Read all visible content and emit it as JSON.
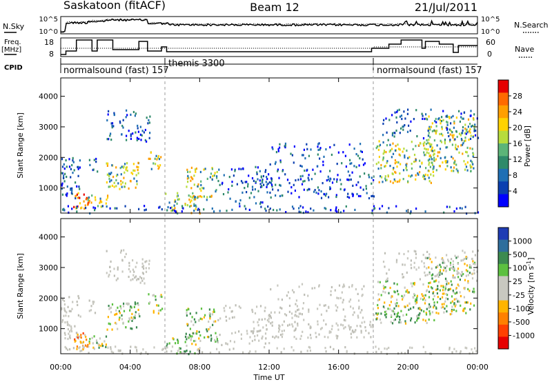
{
  "header": {
    "station": "Saskatoon (fitACF)",
    "beam": "Beam 12",
    "date": "21/Jul/2011"
  },
  "chart_data": [
    {
      "type": "line",
      "panel": "noise",
      "ylabel_left": "N.Sky",
      "ylabel_right": "N.Search",
      "left_ticks": [
        "10^5",
        "10^0"
      ],
      "right_ticks": [
        "10^5",
        "10^0"
      ],
      "series": [
        {
          "name": "N.Sky",
          "style": "solid"
        },
        {
          "name": "N.Search",
          "style": "dotted"
        }
      ]
    },
    {
      "type": "line",
      "panel": "frequency",
      "ylabel_left_1": "Freq.",
      "ylabel_left_2": "[MHz]",
      "ylabel_right": "Nave",
      "left_ticks": [
        "18",
        "8"
      ],
      "right_ticks": [
        "60",
        "0"
      ],
      "series": [
        {
          "name": "Freq.",
          "style": "solid"
        },
        {
          "name": "Nave",
          "style": "dotted"
        }
      ]
    },
    {
      "type": "table",
      "panel": "cpid",
      "label": "CPID",
      "segments": [
        {
          "start_h": 0,
          "end_h": 6,
          "text": "normalsound (fast) 157"
        },
        {
          "start_h": 6,
          "end_h": 18,
          "text": "themis 3300"
        },
        {
          "start_h": 18,
          "end_h": 24,
          "text": "normalsound (fast) 157"
        }
      ]
    },
    {
      "type": "heatmap",
      "panel": "power",
      "ylabel": "Slant Range [km]",
      "ylim": [
        180,
        4600
      ],
      "yticks": [
        1000,
        2000,
        3000,
        4000
      ],
      "colorbar_label": "Power [dB]",
      "colorbar_ticks": [
        "28",
        "24",
        "20",
        "16",
        "12",
        "8",
        "4"
      ],
      "colorbar_colors": [
        "#e60000",
        "#ff6a00",
        "#ff9f00",
        "#ffd200",
        "#b7dc3c",
        "#5cb478",
        "#2f8a6a",
        "#1f6fb4",
        "#0b3fb0",
        "#0000ff"
      ]
    },
    {
      "type": "heatmap",
      "panel": "velocity",
      "ylabel": "Slant Range [km]",
      "ylim": [
        180,
        4600
      ],
      "yticks": [
        1000,
        2000,
        3000,
        4000
      ],
      "colorbar_label": "Velocity [m s",
      "colorbar_label_sup": "-1",
      "colorbar_label_end": "]",
      "colorbar_ticks": [
        "1000",
        "500",
        "100",
        "25",
        "-25",
        "-100",
        "-500",
        "-1000"
      ],
      "colorbar_colors": [
        "#1f3cb4",
        "#2f6e9c",
        "#3c8a50",
        "#5cc040",
        "#c8c8c0",
        "#c8c8c0",
        "#ffb400",
        "#ff8000",
        "#ff4000",
        "#e60000"
      ]
    }
  ],
  "xaxis": {
    "xlabel": "Time UT",
    "ticks": [
      "00:00",
      "04:00",
      "08:00",
      "12:00",
      "16:00",
      "20:00",
      "00:00"
    ],
    "xlim_hours": [
      0,
      24
    ]
  }
}
